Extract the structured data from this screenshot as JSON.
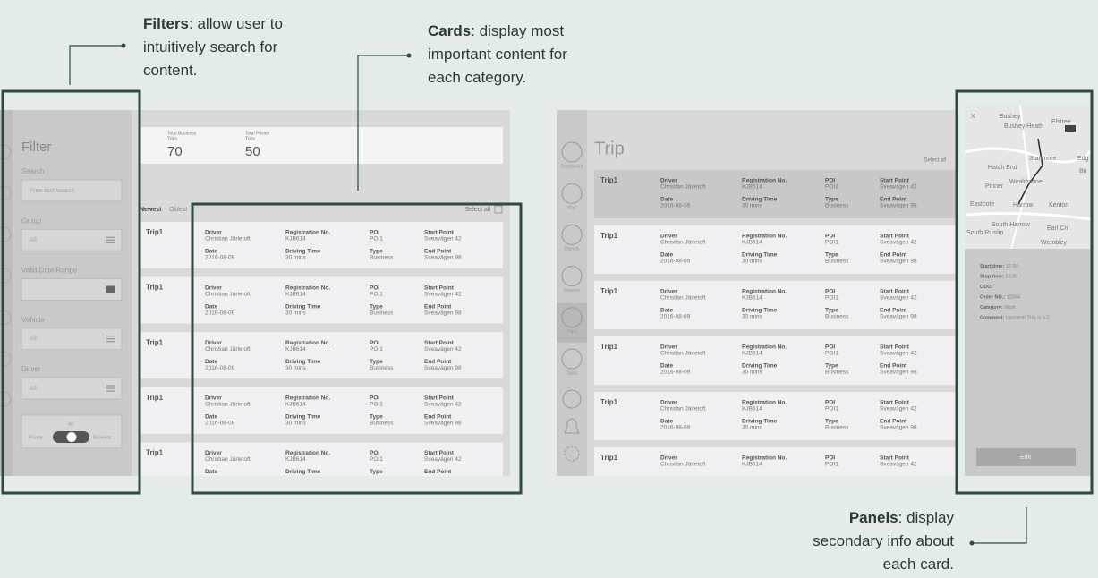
{
  "annotations": {
    "filters": {
      "title": "Filters",
      "lines": [
        ": allow user to",
        "intuitively search for",
        "content."
      ]
    },
    "cards": {
      "title": "Cards",
      "lines": [
        ": display most",
        "important content for",
        "each category."
      ]
    },
    "panels": {
      "title": "Panels",
      "lines": [
        ": display",
        "secondary info about",
        "each card."
      ]
    }
  },
  "left": {
    "filter": {
      "title": "Filter",
      "fields": [
        {
          "label": "Search",
          "placeholder": "Free text search"
        },
        {
          "label": "Group",
          "value": "All"
        },
        {
          "label": "Valid Date Range"
        },
        {
          "label": "Vehicle",
          "value": "All"
        },
        {
          "label": "Driver",
          "value": "All"
        }
      ],
      "toggle": {
        "label": "All",
        "left": "Private",
        "right": "Business"
      }
    },
    "stats": [
      {
        "label": [
          "Total Business",
          "Trips"
        ],
        "value": 70
      },
      {
        "label": [
          "Total Private",
          "Trips"
        ],
        "value": 50
      }
    ],
    "sort": [
      "Newest",
      "Oldest"
    ],
    "select_all": "Select all",
    "cards": [
      {
        "title": "Trip1",
        "fields": [
          [
            "Driver",
            "Christian Järletoft"
          ],
          [
            "Registration No.",
            "KJB614"
          ],
          [
            "POI",
            "POI1"
          ],
          [
            "Start Point",
            "Sveavägen 42"
          ],
          [
            "Date",
            "2016-08-09"
          ],
          [
            "Driving Time",
            "30 mins"
          ],
          [
            "Type",
            "Business"
          ],
          [
            "End Point",
            "Sveavägen 98"
          ]
        ]
      },
      {
        "title": "Trip1",
        "fields": [
          [
            "Driver",
            "Christian Järletoft"
          ],
          [
            "Registration No.",
            "KJB614"
          ],
          [
            "POI",
            "POI1"
          ],
          [
            "Start Point",
            "Sveavägen 42"
          ],
          [
            "Date",
            "2016-08-09"
          ],
          [
            "Driving Time",
            "30 mins"
          ],
          [
            "Type",
            "Business"
          ],
          [
            "End Point",
            "Sveavägen 98"
          ]
        ]
      },
      {
        "title": "Trip1",
        "fields": [
          [
            "Driver",
            "Christian Järletoft"
          ],
          [
            "Registration No.",
            "KJB614"
          ],
          [
            "POI",
            "POI1"
          ],
          [
            "Start Point",
            "Sveavägen 42"
          ],
          [
            "Date",
            "2016-08-09"
          ],
          [
            "Driving Time",
            "30 mins"
          ],
          [
            "Type",
            "Business"
          ],
          [
            "End Point",
            "Sveavägen 98"
          ]
        ]
      },
      {
        "title": "Trip1",
        "fields": [
          [
            "Driver",
            "Christian Järletoft"
          ],
          [
            "Registration No.",
            "KJB614"
          ],
          [
            "POI",
            "POI1"
          ],
          [
            "Start Point",
            "Sveavägen 42"
          ],
          [
            "Date",
            "2016-08-09"
          ],
          [
            "Driving Time",
            "30 mins"
          ],
          [
            "Type",
            "Business"
          ],
          [
            "End Point",
            "Sveavägen 98"
          ]
        ]
      },
      {
        "title": "Trip1",
        "fields": [
          [
            "Driver",
            "Christian Järletoft"
          ],
          [
            "Registration No.",
            "KJB614"
          ],
          [
            "POI",
            "POI1"
          ],
          [
            "Start Point",
            "Sveavägen 42"
          ],
          [
            "Date"
          ],
          [
            "Driving Time"
          ],
          [
            "Type"
          ],
          [
            "End Point"
          ]
        ]
      }
    ]
  },
  "right": {
    "nav": [
      "Dashboard",
      "Map",
      "Objects",
      "Reports",
      "Trips",
      "Tasks"
    ],
    "title": "Trip",
    "select_all": "Select all",
    "selected": 0,
    "cards": [
      {
        "title": "Trip1",
        "fields": [
          [
            "Driver",
            "Christian Järletoft"
          ],
          [
            "Registration No.",
            "KJB614"
          ],
          [
            "POI",
            "POI1"
          ],
          [
            "Start Point",
            "Sveavägen 42"
          ],
          [
            "Date",
            "2016-08-09"
          ],
          [
            "Driving Time",
            "30 mins"
          ],
          [
            "Type",
            "Business"
          ],
          [
            "End Point",
            "Sveavägen 98"
          ]
        ]
      },
      {
        "title": "Trip1",
        "fields": [
          [
            "Driver",
            "Christian Järletoft"
          ],
          [
            "Registration No.",
            "KJB614"
          ],
          [
            "POI",
            "POI1"
          ],
          [
            "Start Point",
            "Sveavägen 42"
          ],
          [
            "Date",
            "2016-08-09"
          ],
          [
            "Driving Time",
            "30 mins"
          ],
          [
            "Type",
            "Business"
          ],
          [
            "End Point",
            "Sveavägen 98"
          ]
        ]
      },
      {
        "title": "Trip1",
        "fields": [
          [
            "Driver",
            "Christian Järletoft"
          ],
          [
            "Registration No.",
            "KJB614"
          ],
          [
            "POI",
            "POI1"
          ],
          [
            "Start Point",
            "Sveavägen 42"
          ],
          [
            "Date",
            "2016-08-09"
          ],
          [
            "Driving Time",
            "30 mins"
          ],
          [
            "Type",
            "Business"
          ],
          [
            "End Point",
            "Sveavägen 98"
          ]
        ]
      },
      {
        "title": "Trip1",
        "fields": [
          [
            "Driver",
            "Christian Järletoft"
          ],
          [
            "Registration No.",
            "KJB614"
          ],
          [
            "POI",
            "POI1"
          ],
          [
            "Start Point",
            "Sveavägen 42"
          ],
          [
            "Date",
            "2016-08-09"
          ],
          [
            "Driving Time",
            "30 mins"
          ],
          [
            "Type",
            "Business"
          ],
          [
            "End Point",
            "Sveavägen 98"
          ]
        ]
      },
      {
        "title": "Trip1",
        "fields": [
          [
            "Driver",
            "Christian Järletoft"
          ],
          [
            "Registration No.",
            "KJB614"
          ],
          [
            "POI",
            "POI1"
          ],
          [
            "Start Point",
            "Sveavägen 42"
          ],
          [
            "Date",
            "2016-08-09"
          ],
          [
            "Driving Time",
            "30 mins"
          ],
          [
            "Type",
            "Business"
          ],
          [
            "End Point",
            "Sveavägen 98"
          ]
        ]
      },
      {
        "title": "Trip1",
        "fields": [
          [
            "Driver",
            "Christian Järletoft"
          ],
          [
            "Registration No.",
            "KJB614"
          ],
          [
            "POI",
            "POI1"
          ],
          [
            "Start Point",
            "Sveavägen 42"
          ]
        ]
      }
    ],
    "map_labels": [
      "X",
      "Bushey",
      "Bushey Heath",
      "Elstree",
      "Stanmore",
      "Edg",
      "Bu",
      "Hatch End",
      "Pinner",
      "Wealdstone",
      "Eastcote",
      "Harrow",
      "Kenton",
      "South Harrow",
      "Earl Cn",
      "South Ruislip",
      "Wembley"
    ],
    "panel": [
      {
        "label": "Start time:",
        "value": "12.00"
      },
      {
        "label": "Stop time:",
        "value": "12.30"
      },
      {
        "label": "ODO:"
      },
      {
        "label": "Order NO.:",
        "value": "12864"
      },
      {
        "label": "Category:",
        "value": "Work"
      },
      {
        "label": "Comment:",
        "value": "Updated! This is V.2"
      }
    ],
    "button": "Edit"
  }
}
